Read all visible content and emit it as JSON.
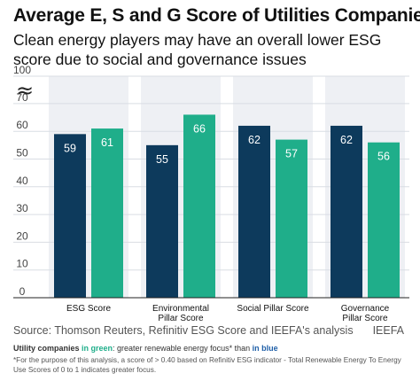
{
  "header": {
    "title": "Average E, S and G Score of Utilities Companies",
    "subtitle": "Clean energy players may have an overall lower ESG score due to social and governance issues"
  },
  "footer": {
    "source": "Source: Thomson Reuters, Refinitiv ESG Score and IEEFA's analysis",
    "brand": "IEEFA",
    "legend_note": {
      "part1": "Utility companies ",
      "green": "in green",
      "part2": ": greater renewable energy focus* than ",
      "blue": "in blue"
    },
    "footnote": "*For the purpose of this analysis, a score of > 0.40 based on Refinitiv ESG indicator - Total Renewable Energy To Energy Use Scores of 0 to 1 indicates greater focus."
  },
  "colors": {
    "blue": "#0d3a5c",
    "green": "#1fae8a",
    "background_column": "#eef0f4",
    "grid": "#d9dde3"
  },
  "chart_data": {
    "type": "bar",
    "categories": [
      "ESG Score",
      "Environmental Pillar Score",
      "Social Pillar Score",
      "Governance Pillar Score"
    ],
    "category_lines": [
      [
        "ESG Score"
      ],
      [
        "Environmental",
        "Pillar Score"
      ],
      [
        "Social Pillar Score"
      ],
      [
        "Governance",
        "Pillar Score"
      ]
    ],
    "series": [
      {
        "values": [
          59,
          55,
          62,
          62
        ],
        "color": "#0d3a5c"
      },
      {
        "values": [
          61,
          66,
          57,
          56
        ],
        "color": "#1fae8a"
      }
    ],
    "y_ticks": [
      "0",
      "10",
      "20",
      "30",
      "40",
      "50",
      "60",
      "70",
      "100"
    ],
    "y_tick_values": [
      0,
      10,
      20,
      30,
      40,
      50,
      60,
      70,
      100
    ],
    "axis_break": true,
    "axis_break_symbol": "≈",
    "grid": true
  }
}
